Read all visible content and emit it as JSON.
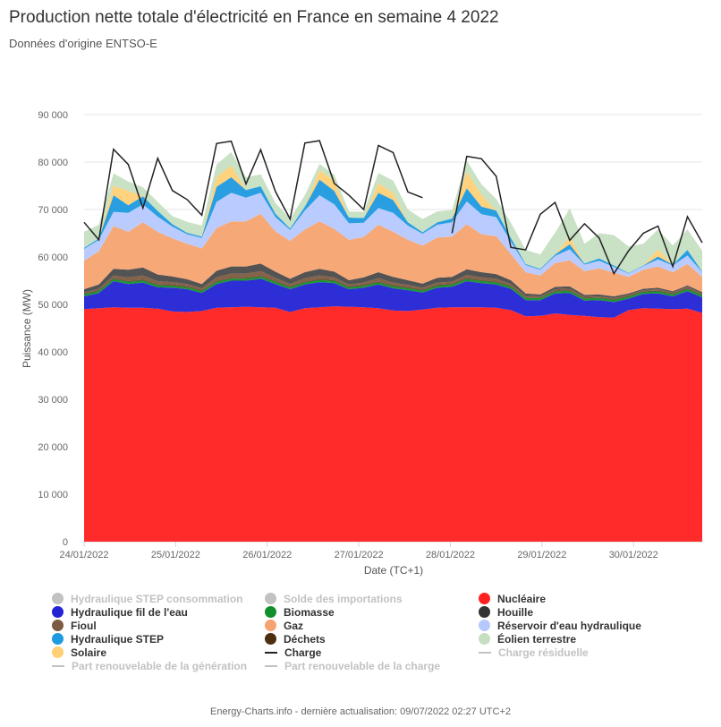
{
  "title": "Production nette totale d'électricité en France en semaine 4 2022",
  "subtitle": "Données d'origine ENTSO-E",
  "footer": "Energy-Charts.info - dernière actualisation: 09/07/2022 02:27 UTC+2",
  "chart_data": {
    "type": "area",
    "stacked": true,
    "title": "Production nette totale d'électricité en France en semaine 4 2022",
    "subtitle": "Données d'origine ENTSO-E",
    "xlabel": "Date (TC+1)",
    "ylabel": "Puissance (MW)",
    "ylim": [
      0,
      90000
    ],
    "yticks": [
      0,
      10000,
      20000,
      30000,
      40000,
      50000,
      60000,
      70000,
      80000,
      90000
    ],
    "ytick_labels": [
      "0",
      "10 000",
      "20 000",
      "30 000",
      "40 000",
      "50 000",
      "60 000",
      "70 000",
      "80 000",
      "90 000"
    ],
    "xlim_days": [
      0,
      6.75
    ],
    "x_tick_labels": [
      "24/01/2022",
      "25/01/2022",
      "26/01/2022",
      "27/01/2022",
      "28/01/2022",
      "29/01/2022",
      "30/01/2022"
    ],
    "grid": true,
    "legend_position": "bottom",
    "series": [
      {
        "name": "Nucléaire",
        "color": "#ff2020",
        "values": [
          49000,
          49200,
          49400,
          49300,
          49300,
          49100,
          48500,
          48400,
          48600,
          49300,
          49400,
          49500,
          49400,
          49300,
          48400,
          49200,
          49400,
          49600,
          49500,
          49400,
          49200,
          48700,
          48600,
          48900,
          49300,
          49400,
          49400,
          49400,
          49300,
          48800,
          47500,
          47600,
          48100,
          47800,
          47600,
          47300,
          47200,
          48800,
          49200,
          49100,
          49000,
          49100,
          48200
        ]
      },
      {
        "name": "Hydraulique fil de l'eau",
        "color": "#2323d4",
        "values": [
          2700,
          3200,
          5500,
          5000,
          5300,
          4500,
          5000,
          4800,
          3800,
          5000,
          5600,
          5500,
          6000,
          5000,
          4800,
          5000,
          5300,
          4900,
          3700,
          4100,
          5000,
          4700,
          4400,
          3600,
          4200,
          4300,
          5500,
          5100,
          4900,
          4500,
          3400,
          3300,
          4200,
          4600,
          3200,
          3600,
          3300,
          2400,
          3000,
          3200,
          2700,
          3700,
          3300
        ]
      },
      {
        "name": "Biomasse",
        "color": "#118f2c",
        "values": [
          450,
          450,
          450,
          450,
          450,
          450,
          450,
          450,
          450,
          450,
          450,
          450,
          450,
          450,
          450,
          450,
          450,
          450,
          450,
          450,
          450,
          450,
          450,
          450,
          450,
          450,
          450,
          450,
          450,
          450,
          450,
          450,
          450,
          450,
          450,
          450,
          450,
          450,
          450,
          450,
          450,
          450,
          450
        ]
      },
      {
        "name": "Déchets",
        "color": "#4d2f0f",
        "values": [
          150,
          150,
          150,
          150,
          150,
          150,
          150,
          150,
          150,
          150,
          150,
          150,
          150,
          150,
          150,
          150,
          150,
          150,
          150,
          150,
          150,
          150,
          150,
          150,
          150,
          150,
          150,
          150,
          150,
          150,
          150,
          150,
          150,
          150,
          150,
          150,
          150,
          150,
          150,
          150,
          150,
          150,
          150
        ]
      },
      {
        "name": "Fioul",
        "color": "#7d5b40",
        "values": [
          200,
          300,
          600,
          800,
          900,
          700,
          600,
          500,
          400,
          800,
          900,
          900,
          1000,
          700,
          500,
          700,
          800,
          600,
          400,
          500,
          700,
          600,
          500,
          400,
          500,
          500,
          700,
          600,
          600,
          400,
          300,
          200,
          300,
          300,
          200,
          200,
          200,
          200,
          200,
          300,
          200,
          300,
          200
        ]
      },
      {
        "name": "Houille",
        "color": "#4a4a4a",
        "values": [
          700,
          900,
          1400,
          1600,
          1700,
          1400,
          1200,
          1000,
          900,
          1400,
          1500,
          1500,
          1600,
          1300,
          1100,
          1300,
          1400,
          1200,
          900,
          1100,
          1300,
          1200,
          1000,
          900,
          1000,
          1000,
          1200,
          1100,
          1000,
          800,
          500,
          400,
          500,
          500,
          400,
          400,
          400,
          300,
          300,
          300,
          300,
          300,
          300
        ]
      },
      {
        "name": "Gaz",
        "color": "#f5a370",
        "values": [
          6000,
          7000,
          9000,
          8000,
          9500,
          9000,
          8000,
          7500,
          7500,
          9000,
          9500,
          9500,
          10500,
          8500,
          8000,
          9000,
          10000,
          9000,
          8500,
          8500,
          10000,
          9500,
          8500,
          8000,
          8500,
          8500,
          9500,
          8000,
          8000,
          5500,
          4500,
          4000,
          5000,
          5500,
          5000,
          5500,
          5000,
          3500,
          4000,
          4500,
          4000,
          4500,
          3200
        ]
      },
      {
        "name": "Réservoir d'eau hydraulique",
        "color": "#b6c9ff",
        "values": [
          2500,
          2400,
          3000,
          4000,
          3800,
          3200,
          2500,
          2000,
          2200,
          5500,
          6000,
          5000,
          4400,
          3000,
          2300,
          4000,
          5500,
          5200,
          3500,
          3000,
          3500,
          4000,
          3000,
          2500,
          2700,
          3000,
          4800,
          4200,
          4000,
          2600,
          1500,
          1200,
          1500,
          2300,
          1400,
          1600,
          1200,
          700,
          800,
          1500,
          1400,
          1800,
          1000
        ]
      },
      {
        "name": "Hydraulique STEP",
        "color": "#1e9ae0",
        "values": [
          200,
          300,
          3500,
          1600,
          1700,
          1200,
          500,
          300,
          300,
          3200,
          3300,
          1600,
          1400,
          700,
          300,
          800,
          3300,
          2800,
          1200,
          1000,
          3200,
          2700,
          700,
          300,
          500,
          800,
          2800,
          1600,
          1400,
          800,
          200,
          200,
          300,
          1100,
          200,
          500,
          300,
          100,
          100,
          600,
          200,
          1200,
          100
        ]
      },
      {
        "name": "Solaire",
        "color": "#ffd076",
        "values": [
          0,
          0,
          2000,
          3000,
          0,
          0,
          0,
          0,
          0,
          2000,
          2500,
          0,
          0,
          0,
          0,
          0,
          2000,
          2200,
          0,
          0,
          2000,
          1500,
          0,
          0,
          0,
          0,
          3500,
          2500,
          0,
          0,
          0,
          0,
          0,
          1500,
          0,
          0,
          0,
          0,
          0,
          1500,
          0,
          0,
          0
        ]
      },
      {
        "name": "Éolien terrestre",
        "color": "#c6dfc1",
        "values": [
          3400,
          2900,
          2600,
          2000,
          1900,
          1900,
          1700,
          2300,
          2300,
          2700,
          2800,
          2700,
          2500,
          2300,
          2100,
          2400,
          1300,
          1200,
          1300,
          1300,
          2200,
          2600,
          2700,
          2800,
          2300,
          1800,
          2300,
          2200,
          2400,
          3200,
          3000,
          3000,
          4600,
          6000,
          4200,
          5300,
          6400,
          5600,
          4600,
          4200,
          4000,
          4300,
          4400
        ]
      }
    ],
    "charge": [
      67300,
      63600,
      82700,
      79500,
      70300,
      80800,
      74000,
      72100,
      68800,
      83900,
      84400,
      75400,
      82600,
      73800,
      68000,
      84000,
      84500,
      75500,
      73000,
      70000,
      83500,
      82000,
      73700,
      72500,
      null,
      65000,
      81200,
      80700,
      77000,
      62000,
      61500,
      69000,
      71500,
      63500,
      67000,
      64000,
      56500,
      61300,
      65000,
      66500,
      58000,
      68500,
      63000
    ],
    "hidden_series": [
      "Hydraulique STEP consommation",
      "Solde des importations",
      "Part renouvelable de la génération",
      "Part renouvelable de la charge",
      "Charge résiduelle"
    ]
  },
  "legend": [
    {
      "label": "Hydraulique STEP consommation",
      "color": "#c2c2c2",
      "kind": "dot",
      "active": false
    },
    {
      "label": "Solde des importations",
      "color": "#c2c2c2",
      "kind": "dot",
      "active": false
    },
    {
      "label": "Nucléaire",
      "color": "#ff2020",
      "kind": "dot",
      "active": true
    },
    {
      "label": "Hydraulique fil de l'eau",
      "color": "#2323d4",
      "kind": "dot",
      "active": true
    },
    {
      "label": "Biomasse",
      "color": "#118f2c",
      "kind": "dot",
      "active": true
    },
    {
      "label": "Houille",
      "color": "#333333",
      "kind": "dot",
      "active": true
    },
    {
      "label": "Fioul",
      "color": "#7d5b40",
      "kind": "dot",
      "active": true
    },
    {
      "label": "Gaz",
      "color": "#f5a370",
      "kind": "dot",
      "active": true
    },
    {
      "label": "Réservoir d'eau hydraulique",
      "color": "#b6c9ff",
      "kind": "dot",
      "active": true
    },
    {
      "label": "Hydraulique STEP",
      "color": "#1e9ae0",
      "kind": "dot",
      "active": true
    },
    {
      "label": "Déchets",
      "color": "#4d2f0f",
      "kind": "dot",
      "active": true
    },
    {
      "label": "Éolien terrestre",
      "color": "#c6dfc1",
      "kind": "dot",
      "active": true
    },
    {
      "label": "Solaire",
      "color": "#ffd076",
      "kind": "dot",
      "active": true
    },
    {
      "label": "Charge",
      "color": "#222222",
      "kind": "line",
      "active": true
    },
    {
      "label": "Charge résiduelle",
      "color": "#c2c2c2",
      "kind": "line",
      "active": false
    },
    {
      "label": "Part renouvelable de la génération",
      "color": "#c2c2c2",
      "kind": "line",
      "active": false
    },
    {
      "label": "Part renouvelable de la charge",
      "color": "#c2c2c2",
      "kind": "line",
      "active": false
    }
  ]
}
